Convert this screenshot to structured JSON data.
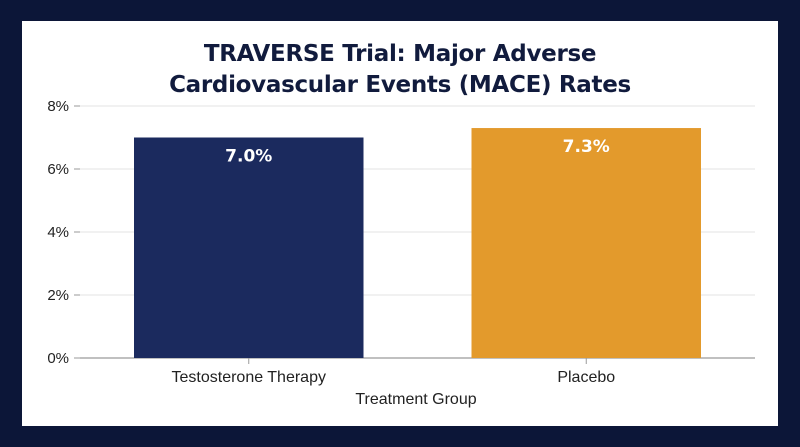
{
  "chart_data": {
    "type": "bar",
    "title_lines": [
      "TRAVERSE Trial: Major Adverse",
      "Cardiovascular Events (MACE) Rates"
    ],
    "categories": [
      "Testosterone Therapy",
      "Placebo"
    ],
    "values": [
      7.0,
      7.3
    ],
    "data_labels": [
      "7.0%",
      "7.3%"
    ],
    "colors": [
      "#1b2a5e",
      "#e39a2c"
    ],
    "xlabel": "Treatment Group",
    "ylabel": "",
    "ylim": [
      0,
      8
    ],
    "yticks": [
      0,
      2,
      4,
      6,
      8
    ],
    "ytick_labels": [
      "0%",
      "2%",
      "4%",
      "6%",
      "8%"
    ],
    "grid": true,
    "legend": "none"
  }
}
